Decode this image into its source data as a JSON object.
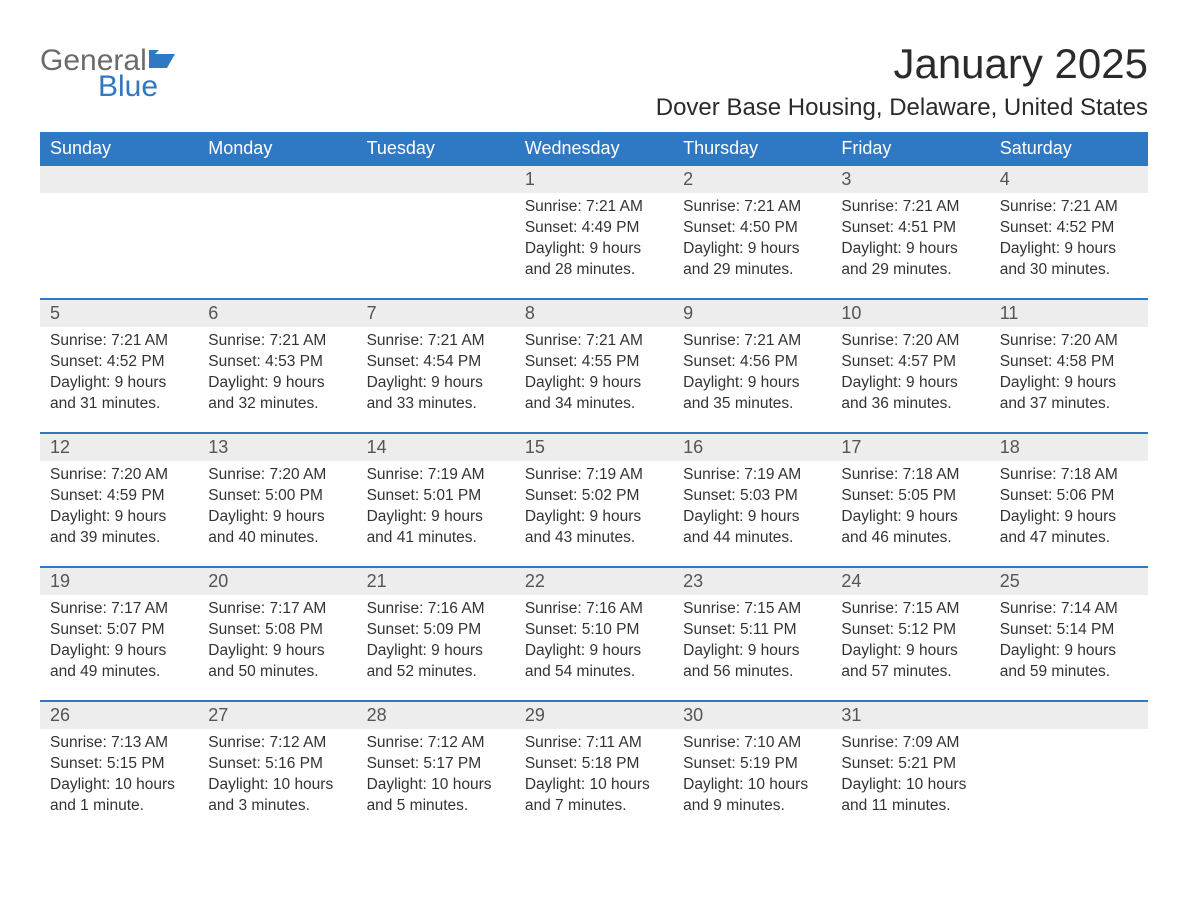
{
  "brand": {
    "text1": "General",
    "text2": "Blue",
    "color_general": "#6b6b6b",
    "color_blue": "#2f78c4",
    "icon_color": "#2f78c4"
  },
  "header": {
    "month_title": "January 2025",
    "location": "Dover Base Housing, Delaware, United States",
    "title_color": "#2b2b2b",
    "title_fontsize": 42,
    "location_fontsize": 24
  },
  "calendar": {
    "weekday_bg": "#2f78c4",
    "weekday_text_color": "#ffffff",
    "weekday_fontsize": 18,
    "daynum_bg": "#ededed",
    "daynum_color": "#555555",
    "detail_text_color": "#333333",
    "detail_fontsize": 15.5,
    "row_divider_color": "#2f78c4",
    "background_color": "#ffffff",
    "weekdays": [
      "Sunday",
      "Monday",
      "Tuesday",
      "Wednesday",
      "Thursday",
      "Friday",
      "Saturday"
    ],
    "weeks": [
      [
        null,
        null,
        null,
        {
          "day": "1",
          "sunrise": "Sunrise: 7:21 AM",
          "sunset": "Sunset: 4:49 PM",
          "daylight": "Daylight: 9 hours and 28 minutes."
        },
        {
          "day": "2",
          "sunrise": "Sunrise: 7:21 AM",
          "sunset": "Sunset: 4:50 PM",
          "daylight": "Daylight: 9 hours and 29 minutes."
        },
        {
          "day": "3",
          "sunrise": "Sunrise: 7:21 AM",
          "sunset": "Sunset: 4:51 PM",
          "daylight": "Daylight: 9 hours and 29 minutes."
        },
        {
          "day": "4",
          "sunrise": "Sunrise: 7:21 AM",
          "sunset": "Sunset: 4:52 PM",
          "daylight": "Daylight: 9 hours and 30 minutes."
        }
      ],
      [
        {
          "day": "5",
          "sunrise": "Sunrise: 7:21 AM",
          "sunset": "Sunset: 4:52 PM",
          "daylight": "Daylight: 9 hours and 31 minutes."
        },
        {
          "day": "6",
          "sunrise": "Sunrise: 7:21 AM",
          "sunset": "Sunset: 4:53 PM",
          "daylight": "Daylight: 9 hours and 32 minutes."
        },
        {
          "day": "7",
          "sunrise": "Sunrise: 7:21 AM",
          "sunset": "Sunset: 4:54 PM",
          "daylight": "Daylight: 9 hours and 33 minutes."
        },
        {
          "day": "8",
          "sunrise": "Sunrise: 7:21 AM",
          "sunset": "Sunset: 4:55 PM",
          "daylight": "Daylight: 9 hours and 34 minutes."
        },
        {
          "day": "9",
          "sunrise": "Sunrise: 7:21 AM",
          "sunset": "Sunset: 4:56 PM",
          "daylight": "Daylight: 9 hours and 35 minutes."
        },
        {
          "day": "10",
          "sunrise": "Sunrise: 7:20 AM",
          "sunset": "Sunset: 4:57 PM",
          "daylight": "Daylight: 9 hours and 36 minutes."
        },
        {
          "day": "11",
          "sunrise": "Sunrise: 7:20 AM",
          "sunset": "Sunset: 4:58 PM",
          "daylight": "Daylight: 9 hours and 37 minutes."
        }
      ],
      [
        {
          "day": "12",
          "sunrise": "Sunrise: 7:20 AM",
          "sunset": "Sunset: 4:59 PM",
          "daylight": "Daylight: 9 hours and 39 minutes."
        },
        {
          "day": "13",
          "sunrise": "Sunrise: 7:20 AM",
          "sunset": "Sunset: 5:00 PM",
          "daylight": "Daylight: 9 hours and 40 minutes."
        },
        {
          "day": "14",
          "sunrise": "Sunrise: 7:19 AM",
          "sunset": "Sunset: 5:01 PM",
          "daylight": "Daylight: 9 hours and 41 minutes."
        },
        {
          "day": "15",
          "sunrise": "Sunrise: 7:19 AM",
          "sunset": "Sunset: 5:02 PM",
          "daylight": "Daylight: 9 hours and 43 minutes."
        },
        {
          "day": "16",
          "sunrise": "Sunrise: 7:19 AM",
          "sunset": "Sunset: 5:03 PM",
          "daylight": "Daylight: 9 hours and 44 minutes."
        },
        {
          "day": "17",
          "sunrise": "Sunrise: 7:18 AM",
          "sunset": "Sunset: 5:05 PM",
          "daylight": "Daylight: 9 hours and 46 minutes."
        },
        {
          "day": "18",
          "sunrise": "Sunrise: 7:18 AM",
          "sunset": "Sunset: 5:06 PM",
          "daylight": "Daylight: 9 hours and 47 minutes."
        }
      ],
      [
        {
          "day": "19",
          "sunrise": "Sunrise: 7:17 AM",
          "sunset": "Sunset: 5:07 PM",
          "daylight": "Daylight: 9 hours and 49 minutes."
        },
        {
          "day": "20",
          "sunrise": "Sunrise: 7:17 AM",
          "sunset": "Sunset: 5:08 PM",
          "daylight": "Daylight: 9 hours and 50 minutes."
        },
        {
          "day": "21",
          "sunrise": "Sunrise: 7:16 AM",
          "sunset": "Sunset: 5:09 PM",
          "daylight": "Daylight: 9 hours and 52 minutes."
        },
        {
          "day": "22",
          "sunrise": "Sunrise: 7:16 AM",
          "sunset": "Sunset: 5:10 PM",
          "daylight": "Daylight: 9 hours and 54 minutes."
        },
        {
          "day": "23",
          "sunrise": "Sunrise: 7:15 AM",
          "sunset": "Sunset: 5:11 PM",
          "daylight": "Daylight: 9 hours and 56 minutes."
        },
        {
          "day": "24",
          "sunrise": "Sunrise: 7:15 AM",
          "sunset": "Sunset: 5:12 PM",
          "daylight": "Daylight: 9 hours and 57 minutes."
        },
        {
          "day": "25",
          "sunrise": "Sunrise: 7:14 AM",
          "sunset": "Sunset: 5:14 PM",
          "daylight": "Daylight: 9 hours and 59 minutes."
        }
      ],
      [
        {
          "day": "26",
          "sunrise": "Sunrise: 7:13 AM",
          "sunset": "Sunset: 5:15 PM",
          "daylight": "Daylight: 10 hours and 1 minute."
        },
        {
          "day": "27",
          "sunrise": "Sunrise: 7:12 AM",
          "sunset": "Sunset: 5:16 PM",
          "daylight": "Daylight: 10 hours and 3 minutes."
        },
        {
          "day": "28",
          "sunrise": "Sunrise: 7:12 AM",
          "sunset": "Sunset: 5:17 PM",
          "daylight": "Daylight: 10 hours and 5 minutes."
        },
        {
          "day": "29",
          "sunrise": "Sunrise: 7:11 AM",
          "sunset": "Sunset: 5:18 PM",
          "daylight": "Daylight: 10 hours and 7 minutes."
        },
        {
          "day": "30",
          "sunrise": "Sunrise: 7:10 AM",
          "sunset": "Sunset: 5:19 PM",
          "daylight": "Daylight: 10 hours and 9 minutes."
        },
        {
          "day": "31",
          "sunrise": "Sunrise: 7:09 AM",
          "sunset": "Sunset: 5:21 PM",
          "daylight": "Daylight: 10 hours and 11 minutes."
        },
        null
      ]
    ]
  }
}
